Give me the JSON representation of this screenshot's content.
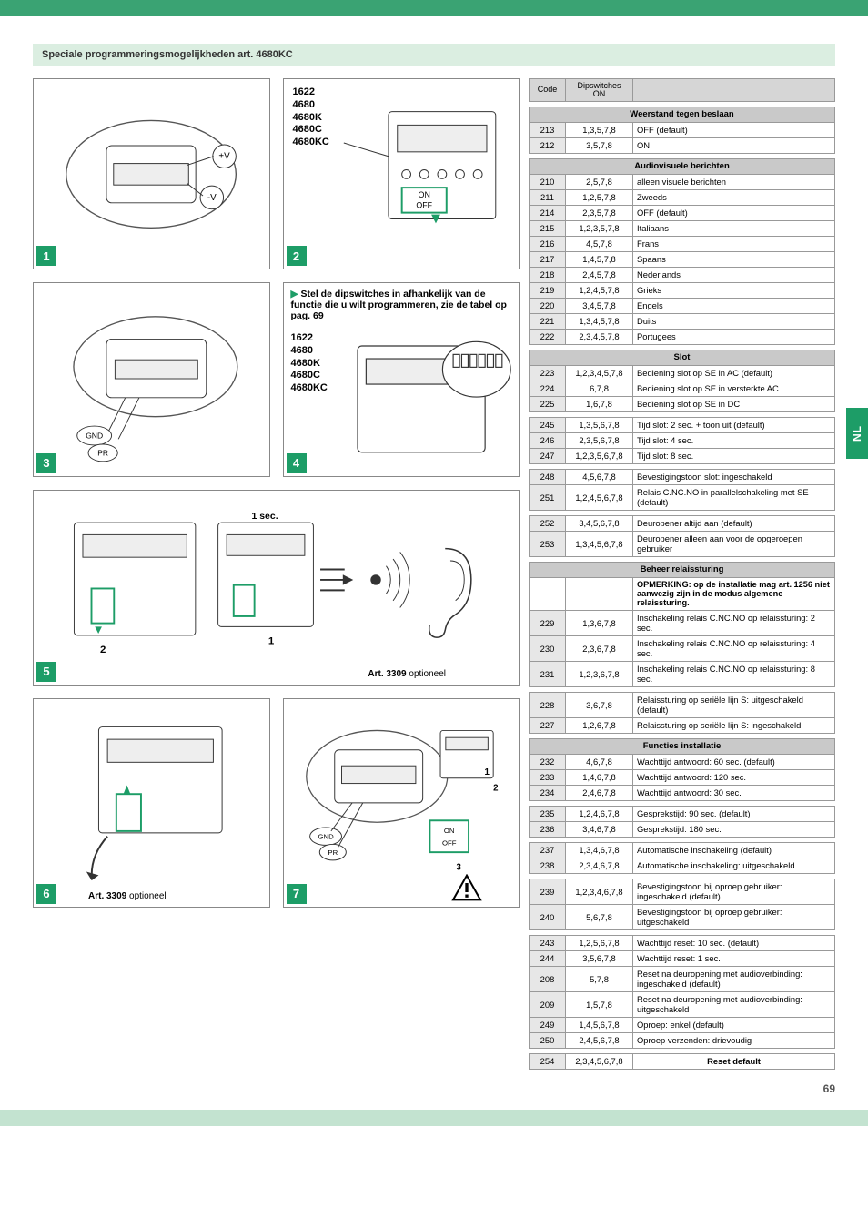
{
  "page": {
    "sectionTitle": "Speciale programmeringsmogelijkheden art. 4680KC",
    "pageNumber": "69",
    "sideTab": "NL"
  },
  "diagrams": {
    "deviceModels": "1622\n4680\n4680K\n4680C\n4680KC",
    "box1": {
      "labels": [
        "+V",
        "-V"
      ]
    },
    "box2": {
      "labels": [
        "ON",
        "OFF"
      ]
    },
    "box3": {
      "labels": [
        "GND",
        "PR"
      ]
    },
    "instruction": "Stel de dipswitches in afhankelijk van de functie die u wilt programmeren, zie de tabel op pag. 69",
    "box5": {
      "sec": "1 sec.",
      "nums": [
        "2",
        "1"
      ],
      "art": "Art. 3309",
      "opt": "optioneel"
    },
    "box6": {
      "art": "Art. 3309",
      "opt": "optioneel"
    },
    "box7": {
      "labels": [
        "GND",
        "PR",
        "ON",
        "OFF"
      ],
      "nums": [
        "1",
        "2",
        "3"
      ]
    }
  },
  "tableHeaders": {
    "code": "Code",
    "dip": "Dipswitches\nON"
  },
  "sections": [
    {
      "title": "Weerstand tegen beslaan",
      "rows": [
        {
          "c": "213",
          "d": "1,3,5,7,8",
          "t": "OFF (default)"
        },
        {
          "c": "212",
          "d": "3,5,7,8",
          "t": "ON"
        }
      ]
    },
    {
      "title": "Audiovisuele berichten",
      "rows": [
        {
          "c": "210",
          "d": "2,5,7,8",
          "t": "alleen visuele berichten"
        },
        {
          "c": "211",
          "d": "1,2,5,7,8",
          "t": "Zweeds"
        },
        {
          "c": "214",
          "d": "2,3,5,7,8",
          "t": "OFF (default)"
        },
        {
          "c": "215",
          "d": "1,2,3,5,7,8",
          "t": "Italiaans"
        },
        {
          "c": "216",
          "d": "4,5,7,8",
          "t": "Frans"
        },
        {
          "c": "217",
          "d": "1,4,5,7,8",
          "t": "Spaans"
        },
        {
          "c": "218",
          "d": "2,4,5,7,8",
          "t": "Nederlands"
        },
        {
          "c": "219",
          "d": "1,2,4,5,7,8",
          "t": "Grieks"
        },
        {
          "c": "220",
          "d": "3,4,5,7,8",
          "t": "Engels"
        },
        {
          "c": "221",
          "d": "1,3,4,5,7,8",
          "t": "Duits"
        },
        {
          "c": "222",
          "d": "2,3,4,5,7,8",
          "t": "Portugees"
        }
      ]
    },
    {
      "title": "Slot",
      "groups": [
        [
          {
            "c": "223",
            "d": "1,2,3,4,5,7,8",
            "t": "Bediening slot op SE in AC (default)"
          },
          {
            "c": "224",
            "d": "6,7,8",
            "t": "Bediening slot op SE in versterkte AC"
          },
          {
            "c": "225",
            "d": "1,6,7,8",
            "t": "Bediening slot op SE in DC"
          }
        ],
        [
          {
            "c": "245",
            "d": "1,3,5,6,7,8",
            "t": "Tijd slot: 2 sec. + toon uit (default)"
          },
          {
            "c": "246",
            "d": "2,3,5,6,7,8",
            "t": "Tijd slot: 4 sec."
          },
          {
            "c": "247",
            "d": "1,2,3,5,6,7,8",
            "t": "Tijd slot: 8 sec."
          }
        ],
        [
          {
            "c": "248",
            "d": "4,5,6,7,8",
            "t": "Bevestigingstoon slot: ingeschakeld"
          },
          {
            "c": "251",
            "d": "1,2,4,5,6,7,8",
            "t": "Relais C.NC.NO in parallelschakeling met SE (default)"
          }
        ],
        [
          {
            "c": "252",
            "d": "3,4,5,6,7,8",
            "t": "Deuropener altijd aan (default)"
          },
          {
            "c": "253",
            "d": "1,3,4,5,6,7,8",
            "t": "Deuropener alleen aan voor de opgeroepen gebruiker"
          }
        ]
      ]
    },
    {
      "title": "Beheer relaissturing",
      "note": "OPMERKING: op de installatie mag art. 1256 niet aanwezig zijn in de modus algemene relaissturing.",
      "groups": [
        [
          {
            "c": "229",
            "d": "1,3,6,7,8",
            "t": "Inschakeling relais C.NC.NO op relaissturing: 2 sec."
          },
          {
            "c": "230",
            "d": "2,3,6,7,8",
            "t": "Inschakeling relais C.NC.NO op relaissturing: 4 sec."
          },
          {
            "c": "231",
            "d": "1,2,3,6,7,8",
            "t": "Inschakeling relais C.NC.NO op relaissturing: 8 sec."
          }
        ],
        [
          {
            "c": "228",
            "d": "3,6,7,8",
            "t": "Relaissturing op seriële lijn S: uitgeschakeld (default)"
          },
          {
            "c": "227",
            "d": "1,2,6,7,8",
            "t": "Relaissturing op seriële lijn S: ingeschakeld"
          }
        ]
      ]
    },
    {
      "title": "Functies installatie",
      "groups": [
        [
          {
            "c": "232",
            "d": "4,6,7,8",
            "t": "Wachttijd antwoord: 60 sec. (default)"
          },
          {
            "c": "233",
            "d": "1,4,6,7,8",
            "t": "Wachttijd antwoord: 120 sec."
          },
          {
            "c": "234",
            "d": "2,4,6,7,8",
            "t": "Wachttijd antwoord: 30 sec."
          }
        ],
        [
          {
            "c": "235",
            "d": "1,2,4,6,7,8",
            "t": "Gesprekstijd: 90 sec. (default)"
          },
          {
            "c": "236",
            "d": "3,4,6,7,8",
            "t": "Gesprekstijd: 180 sec."
          }
        ],
        [
          {
            "c": "237",
            "d": "1,3,4,6,7,8",
            "t": "Automatische inschakeling (default)"
          },
          {
            "c": "238",
            "d": "2,3,4,6,7,8",
            "t": "Automatische inschakeling: uitgeschakeld"
          }
        ],
        [
          {
            "c": "239",
            "d": "1,2,3,4,6,7,8",
            "t": "Bevestigingstoon bij oproep gebruiker: ingeschakeld (default)"
          },
          {
            "c": "240",
            "d": "5,6,7,8",
            "t": "Bevestigingstoon bij oproep gebruiker: uitgeschakeld"
          }
        ],
        [
          {
            "c": "243",
            "d": "1,2,5,6,7,8",
            "t": "Wachttijd reset: 10 sec. (default)"
          },
          {
            "c": "244",
            "d": "3,5,6,7,8",
            "t": "Wachttijd reset: 1 sec."
          },
          {
            "c": "208",
            "d": "5,7,8",
            "t": "Reset na deuropening met audioverbinding: ingeschakeld (default)"
          },
          {
            "c": "209",
            "d": "1,5,7,8",
            "t": "Reset na deuropening met audioverbinding: uitgeschakeld"
          },
          {
            "c": "249",
            "d": "1,4,5,6,7,8",
            "t": "Oproep: enkel (default)"
          },
          {
            "c": "250",
            "d": "2,4,5,6,7,8",
            "t": "Oproep verzenden: drievoudig"
          }
        ]
      ]
    },
    {
      "resetRow": {
        "c": "254",
        "d": "2,3,4,5,6,7,8",
        "t": "Reset default"
      }
    }
  ]
}
